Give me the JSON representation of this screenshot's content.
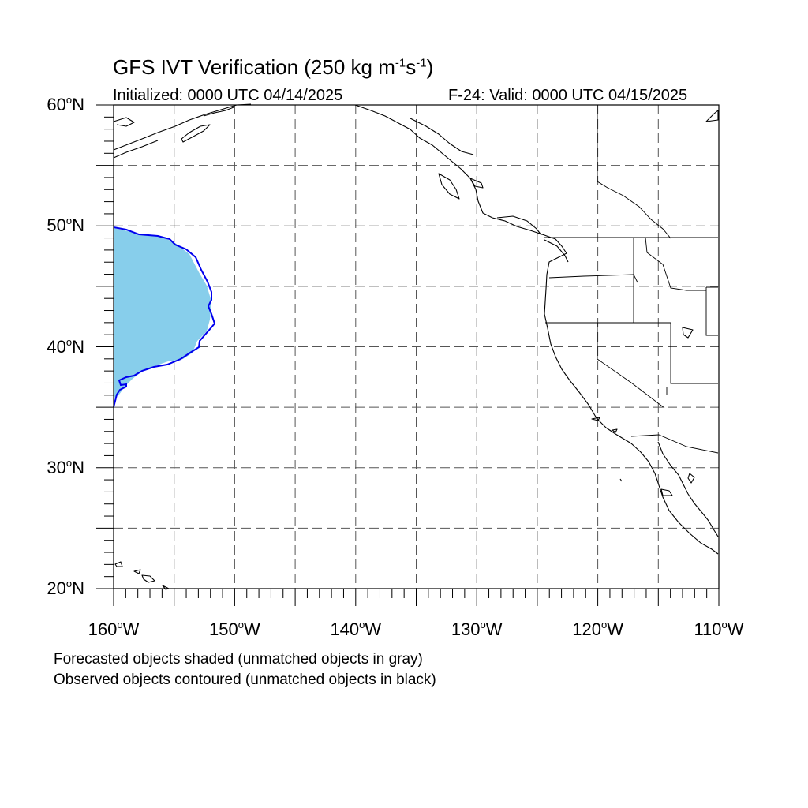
{
  "title": {
    "text": "GFS IVT Verification (250 kg m",
    "sup1": "-1",
    "mid": "s",
    "sup2": "-1",
    "close": ")"
  },
  "initialized": "Initialized: 0000 UTC 04/14/2025",
  "valid": "F-24: Valid: 0000 UTC 04/15/2025",
  "map": {
    "lon_range": [
      -160,
      -110
    ],
    "lat_range": [
      20,
      60
    ],
    "lat_labels": [
      {
        "value": 60,
        "num": "60",
        "unit": "N"
      },
      {
        "value": 50,
        "num": "50",
        "unit": "N"
      },
      {
        "value": 40,
        "num": "40",
        "unit": "N"
      },
      {
        "value": 30,
        "num": "30",
        "unit": "N"
      },
      {
        "value": 20,
        "num": "20",
        "unit": "N"
      }
    ],
    "lon_labels": [
      {
        "value": -160,
        "num": "160",
        "unit": "W"
      },
      {
        "value": -150,
        "num": "150",
        "unit": "W"
      },
      {
        "value": -140,
        "num": "140",
        "unit": "W"
      },
      {
        "value": -130,
        "num": "130",
        "unit": "W"
      },
      {
        "value": -120,
        "num": "120",
        "unit": "W"
      },
      {
        "value": -110,
        "num": "110",
        "unit": "W"
      }
    ],
    "gridlines": "dashed, every 5 degrees",
    "forecast_fill_color": "#87ceeb",
    "observed_contour_color": "#0000ee"
  },
  "notes": {
    "line1": "Forecasted objects shaded (unmatched objects in gray)",
    "line2": "Observed objects contoured (unmatched objects in black)"
  }
}
